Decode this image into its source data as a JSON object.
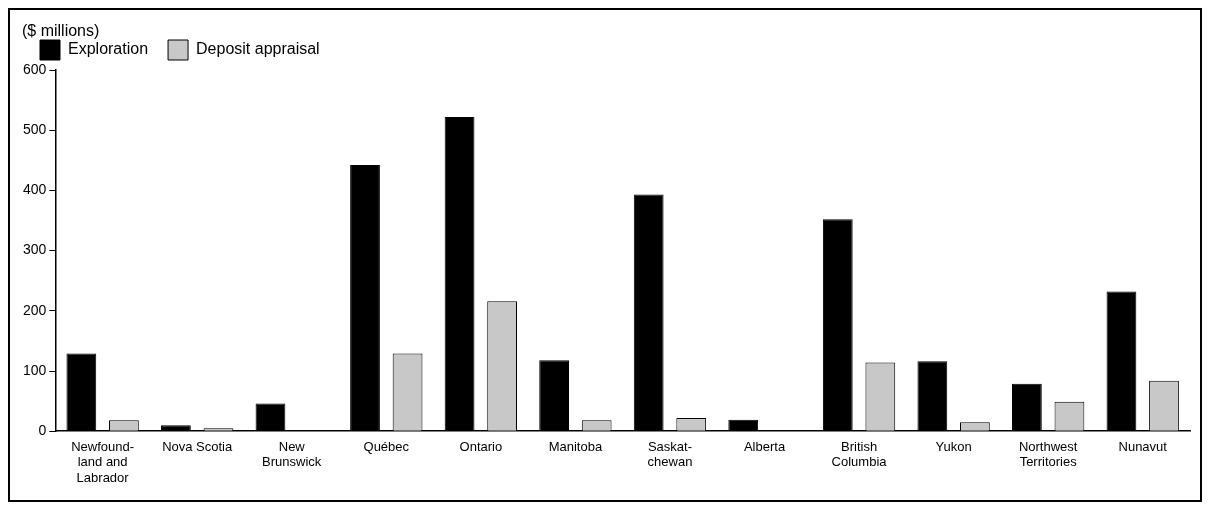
{
  "chart_data": {
    "type": "bar",
    "ylabel": "($ millions)",
    "categories": [
      "Newfound-\nland and\nLabrador",
      "Nova Scotia",
      "New\nBrunswick",
      "Québec",
      "Ontario",
      "Manitoba",
      "Saskat-\nchewan",
      "Alberta",
      "British\nColumbia",
      "Yukon",
      "Northwest\nTerritories",
      "Nunavut"
    ],
    "series": [
      {
        "name": "Exploration",
        "color": "#000000",
        "values": [
          129,
          10,
          46,
          442,
          522,
          118,
          393,
          19,
          352,
          116,
          79,
          232
        ]
      },
      {
        "name": "Deposit appraisal",
        "color": "#c8c8c8",
        "values": [
          18,
          5,
          null,
          129,
          216,
          18,
          22,
          null,
          114,
          15,
          49,
          84
        ]
      }
    ],
    "ylim": [
      0,
      600
    ],
    "yticks": [
      0,
      100,
      200,
      300,
      400,
      500,
      600
    ],
    "grid": false,
    "legend": "top"
  }
}
